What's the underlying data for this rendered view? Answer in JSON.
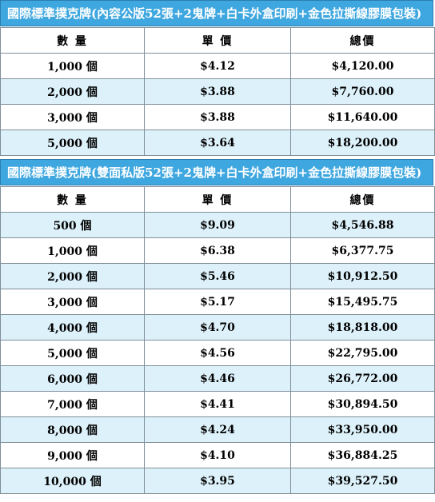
{
  "section1": {
    "title": "國際標準撲克牌(內容公版52張+2鬼牌+白卡外盒印刷+金色拉撕線膠膜包裝)",
    "headers": [
      "數 量",
      "單 價",
      "總價"
    ],
    "rows": [
      [
        "1,000 個",
        "$4.12",
        "$4,120.00"
      ],
      [
        "2,000 個",
        "$3.88",
        "$7,760.00"
      ],
      [
        "3,000 個",
        "$3.88",
        "$11,640.00"
      ],
      [
        "5,000 個",
        "$3.64",
        "$18,200.00"
      ]
    ]
  },
  "section2": {
    "title": "國際標準撲克牌(雙面私版52張+2鬼牌+白卡外盒印刷+金色拉撕線膠膜包裝)",
    "headers": [
      "數 量",
      "單 價",
      "總價"
    ],
    "rows": [
      [
        "500 個",
        "$9.09",
        "$4,546.88"
      ],
      [
        "1,000 個",
        "$6.38",
        "$6,377.75"
      ],
      [
        "2,000 個",
        "$5.46",
        "$10,912.50"
      ],
      [
        "3,000 個",
        "$5.17",
        "$15,495.75"
      ],
      [
        "4,000 個",
        "$4.70",
        "$18,818.00"
      ],
      [
        "5,000 個",
        "$4.56",
        "$22,795.00"
      ],
      [
        "6,000 個",
        "$4.46",
        "$26,772.00"
      ],
      [
        "7,000 個",
        "$4.41",
        "$30,894.50"
      ],
      [
        "8,000 個",
        "$4.24",
        "$33,950.00"
      ],
      [
        "9,000 個",
        "$4.10",
        "$36,884.25"
      ],
      [
        "10,000 個",
        "$3.95",
        "$39,527.50"
      ]
    ]
  },
  "colors": {
    "band": "#3fa7df",
    "alt_row": "#ddf1fa",
    "border": "#7f8f9a"
  }
}
